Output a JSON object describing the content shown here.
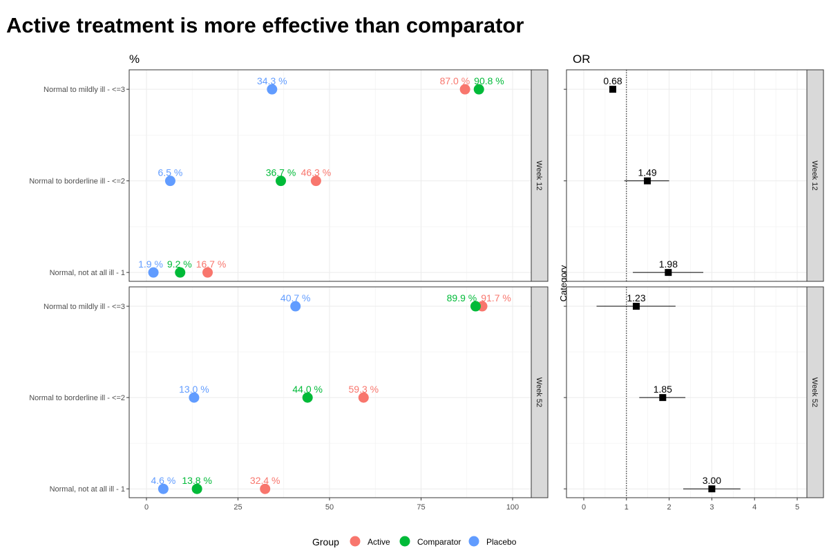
{
  "chart_data": [
    {
      "type": "scatter",
      "title": "Active treatment is more effective than comparator",
      "subtitle": "%",
      "xlabel": "",
      "ylabel": "",
      "xlim": [
        -5,
        105
      ],
      "xticks": [
        0,
        25,
        50,
        75,
        100
      ],
      "grid": true,
      "categories": [
        "Normal to mildly ill - <=3",
        "Normal to borderline ill - <=2",
        "Normal, not at all ill -  1"
      ],
      "facets": [
        "Week 12",
        "Week 52"
      ],
      "series": [
        {
          "name": "Active",
          "color": "#F8766D",
          "values": {
            "Week 12": [
              87.0,
              46.3,
              16.7
            ],
            "Week 52": [
              91.7,
              59.3,
              32.4
            ]
          },
          "labels": {
            "Week 12": [
              "87.0 %",
              "46.3 %",
              "16.7 %"
            ],
            "Week 52": [
              "91.7 %",
              "59.3 %",
              "32.4 %"
            ]
          }
        },
        {
          "name": "Comparator",
          "color": "#00BA38",
          "values": {
            "Week 12": [
              90.8,
              36.7,
              9.2
            ],
            "Week 52": [
              89.9,
              44.0,
              13.8
            ]
          },
          "labels": {
            "Week 12": [
              "90.8 %",
              "36.7 %",
              "9.2 %"
            ],
            "Week 52": [
              "89.9 %",
              "44.0 %",
              "13.8 %"
            ]
          }
        },
        {
          "name": "Placebo",
          "color": "#619CFF",
          "values": {
            "Week 12": [
              34.3,
              6.5,
              1.9
            ],
            "Week 52": [
              40.7,
              13.0,
              4.6
            ]
          },
          "labels": {
            "Week 12": [
              "34.3 %",
              "6.5 %",
              "1.9 %"
            ],
            "Week 52": [
              "40.7 %",
              "13.0 %",
              "4.6 %"
            ]
          }
        }
      ],
      "legend": {
        "title": "Group",
        "position": "bottom"
      }
    },
    {
      "type": "scatter",
      "subtitle": "OR",
      "ylabel": "Category",
      "xlim": [
        -0.2,
        5.25
      ],
      "xticks": [
        0,
        1,
        2,
        3,
        4,
        5
      ],
      "reference_line": 1,
      "facets": [
        "Week 12",
        "Week 52"
      ],
      "points": {
        "Week 12": [
          {
            "or": 0.68,
            "label": "0.68",
            "ci": [
              0.68,
              0.68
            ]
          },
          {
            "or": 1.49,
            "label": "1.49",
            "ci": [
              0.95,
              2.0
            ]
          },
          {
            "or": 1.98,
            "label": "1.98",
            "ci": [
              1.15,
              2.8
            ]
          }
        ],
        "Week 52": [
          {
            "or": 1.23,
            "label": "1.23",
            "ci": [
              0.3,
              2.15
            ]
          },
          {
            "or": 1.85,
            "label": "1.85",
            "ci": [
              1.3,
              2.38
            ]
          },
          {
            "or": 3.0,
            "label": "3.00",
            "ci": [
              2.33,
              3.67
            ]
          }
        ]
      }
    }
  ]
}
